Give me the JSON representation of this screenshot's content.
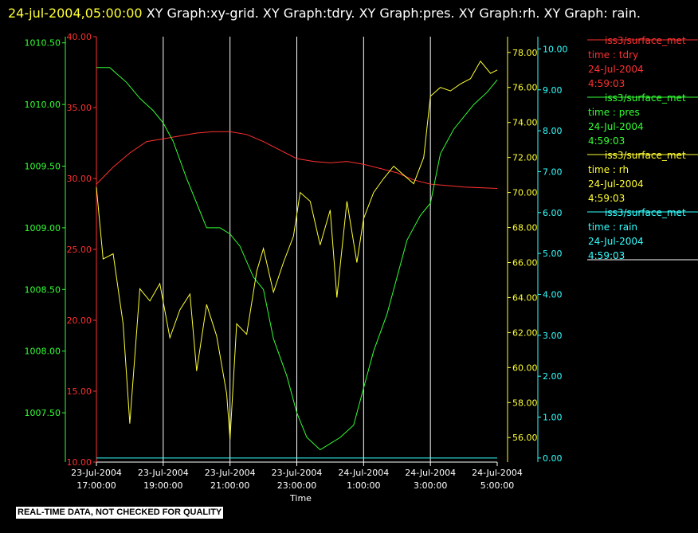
{
  "header": {
    "timestamp": "24-jul-2004,05:00:00",
    "graph_list": "  XY Graph:xy-grid.  XY Graph:tdry.  XY Graph:pres.  XY Graph:rh.  XY Graph: rain."
  },
  "footer": {
    "quality_note": "REAL-TIME DATA, NOT CHECKED FOR QUALITY"
  },
  "colors": {
    "tdry": "#ff3030",
    "pres": "#33ff33",
    "rh": "#ffff33",
    "rain": "#33ffff",
    "grid": "#ffffff"
  },
  "chart_data": {
    "type": "line",
    "xlabel": "Time",
    "x_ticks": [
      [
        "23-Jul-2004",
        "17:00:00"
      ],
      [
        "23-Jul-2004",
        "19:00:00"
      ],
      [
        "23-Jul-2004",
        "21:00:00"
      ],
      [
        "23-Jul-2004",
        "23:00:00"
      ],
      [
        "24-Jul-2004",
        "1:00:00"
      ],
      [
        "24-Jul-2004",
        "3:00:00"
      ],
      [
        "24-Jul-2004",
        "5:00:00"
      ]
    ],
    "x_hours_range": [
      17,
      29
    ],
    "vertical_grid": true,
    "axes": {
      "tdry": {
        "range": [
          10,
          40
        ],
        "ticks": [
          "10.00",
          "15.00",
          "20.00",
          "25.00",
          "30.00",
          "35.00",
          "40.00"
        ]
      },
      "pres": {
        "range": [
          1007.1,
          1010.55
        ],
        "ticks": [
          "1007.50",
          "1008.00",
          "1008.50",
          "1009.00",
          "1009.50",
          "1010.00",
          "1010.50"
        ]
      },
      "rh": {
        "range": [
          54.6,
          78.9
        ],
        "ticks": [
          "56.00",
          "58.00",
          "60.00",
          "62.00",
          "64.00",
          "66.00",
          "68.00",
          "70.00",
          "72.00",
          "74.00",
          "76.00",
          "78.00"
        ]
      },
      "rain": {
        "range": [
          -0.1,
          10.3
        ],
        "ticks": [
          "0.00",
          "1.00",
          "2.00",
          "3.00",
          "4.00",
          "5.00",
          "6.00",
          "7.00",
          "8.00",
          "9.00",
          "10.00"
        ]
      }
    },
    "series": [
      {
        "key": "tdry",
        "name": "iss3/surface_met",
        "label": "time : tdry",
        "date": "24-Jul-2004",
        "time": "4:59:03",
        "x_hours": [
          17,
          17.5,
          18,
          18.5,
          19,
          19.5,
          20,
          20.5,
          21,
          21.5,
          22,
          22.5,
          23,
          23.5,
          24,
          24.5,
          25,
          25.5,
          26,
          26.5,
          27,
          27.5,
          28,
          28.5,
          29
        ],
        "values": [
          29.6,
          30.8,
          31.8,
          32.6,
          32.8,
          33.0,
          33.2,
          33.3,
          33.3,
          33.1,
          32.6,
          32.0,
          31.4,
          31.2,
          31.1,
          31.2,
          31.0,
          30.7,
          30.4,
          29.9,
          29.6,
          29.5,
          29.4,
          29.35,
          29.3
        ]
      },
      {
        "key": "pres",
        "name": "iss3/surface_met",
        "label": "time : pres",
        "date": "24-Jul-2004",
        "time": "4:59:03",
        "x_hours": [
          17,
          17.4,
          17.6,
          17.9,
          18.3,
          18.7,
          19,
          19.3,
          19.7,
          20,
          20.3,
          20.7,
          21,
          21.3,
          21.7,
          22,
          22.3,
          22.7,
          23,
          23.3,
          23.7,
          24,
          24.3,
          24.7,
          25,
          25.3,
          25.7,
          26,
          26.3,
          26.7,
          27,
          27.3,
          27.7,
          28,
          28.3,
          28.7,
          29
        ],
        "values": [
          1010.3,
          1010.3,
          1010.25,
          1010.18,
          1010.05,
          1009.95,
          1009.85,
          1009.7,
          1009.4,
          1009.2,
          1009.0,
          1009.0,
          1008.95,
          1008.85,
          1008.6,
          1008.5,
          1008.1,
          1007.8,
          1007.5,
          1007.3,
          1007.2,
          1007.25,
          1007.3,
          1007.4,
          1007.7,
          1008.0,
          1008.3,
          1008.6,
          1008.9,
          1009.1,
          1009.2,
          1009.6,
          1009.8,
          1009.9,
          1010.0,
          1010.1,
          1010.2
        ]
      },
      {
        "key": "rh",
        "name": "iss3/surface_met",
        "label": "time : rh",
        "date": "24-Jul-2004",
        "time": "4:59:03",
        "x_hours": [
          17,
          17.2,
          17.5,
          17.8,
          18,
          18.3,
          18.6,
          18.9,
          19.2,
          19.5,
          19.8,
          20,
          20.3,
          20.6,
          20.9,
          21,
          21.2,
          21.5,
          21.8,
          22,
          22.3,
          22.6,
          22.9,
          23.1,
          23.4,
          23.7,
          24,
          24.2,
          24.5,
          24.8,
          25,
          25.3,
          25.6,
          25.9,
          26.2,
          26.5,
          26.8,
          27,
          27.3,
          27.6,
          27.9,
          28.2,
          28.5,
          28.8,
          29
        ],
        "values": [
          70.3,
          66.2,
          66.5,
          62.5,
          56.8,
          64.5,
          63.8,
          64.8,
          61.7,
          63.3,
          64.2,
          59.8,
          63.6,
          61.8,
          58.5,
          55.9,
          62.5,
          61.9,
          65.5,
          66.8,
          64.3,
          66.0,
          67.5,
          70.0,
          69.5,
          67.0,
          69.0,
          64.0,
          69.5,
          66.0,
          68.5,
          70.0,
          70.8,
          71.5,
          71.0,
          70.5,
          72.0,
          75.5,
          76.0,
          75.8,
          76.2,
          76.5,
          77.5,
          76.8,
          77.0
        ]
      },
      {
        "key": "rain",
        "name": "iss3/surface_met",
        "label": "time : rain",
        "date": "24-Jul-2004",
        "time": "4:59:03",
        "x_hours": [
          17,
          29
        ],
        "values": [
          0,
          0
        ]
      }
    ]
  }
}
